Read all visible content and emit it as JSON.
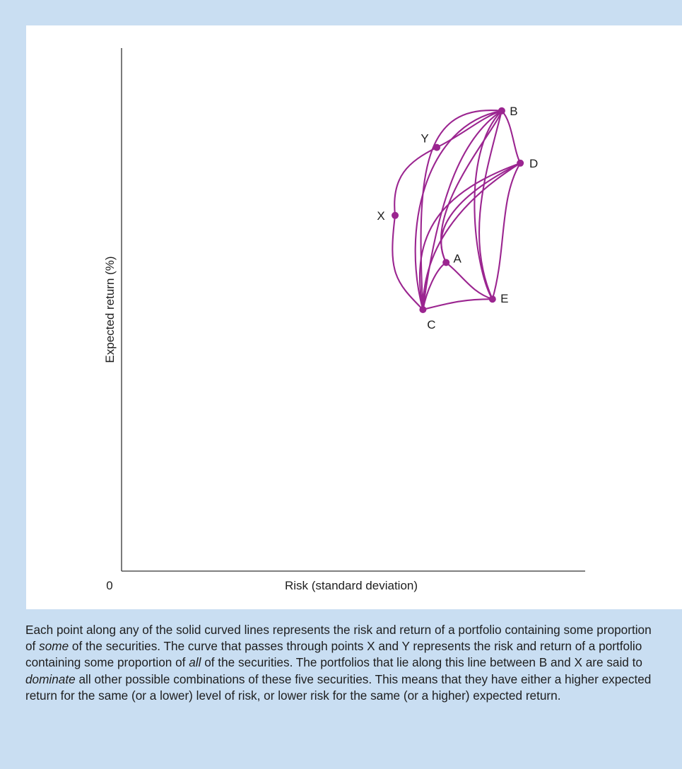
{
  "chart_data": {
    "type": "line",
    "title": "",
    "xlabel": "Risk (standard deviation)",
    "ylabel": "Expected return (%)",
    "origin_label": "0",
    "axis_ticks": false,
    "grid": false,
    "legend": "none",
    "colors": {
      "curve": "#9b2590",
      "point": "#9b2590",
      "axis": "#333333",
      "panel": "#c9def2",
      "plot_background": "#ffffff"
    },
    "points": [
      {
        "name": "B",
        "x": 0.82,
        "y": 0.88
      },
      {
        "name": "Y",
        "x": 0.68,
        "y": 0.81
      },
      {
        "name": "D",
        "x": 0.86,
        "y": 0.78
      },
      {
        "name": "X",
        "x": 0.59,
        "y": 0.68
      },
      {
        "name": "A",
        "x": 0.7,
        "y": 0.59
      },
      {
        "name": "E",
        "x": 0.8,
        "y": 0.52
      },
      {
        "name": "C",
        "x": 0.65,
        "y": 0.5
      }
    ],
    "curves": [
      {
        "from": "X",
        "to": "B",
        "through": "Y"
      },
      {
        "from": "C",
        "to": "X"
      },
      {
        "from": "C",
        "to": "B"
      },
      {
        "from": "C",
        "to": "B"
      },
      {
        "from": "C",
        "to": "B"
      },
      {
        "from": "C",
        "to": "D"
      },
      {
        "from": "C",
        "to": "D"
      },
      {
        "from": "C",
        "to": "A"
      },
      {
        "from": "C",
        "to": "E"
      },
      {
        "from": "A",
        "to": "B"
      },
      {
        "from": "A",
        "to": "D"
      },
      {
        "from": "A",
        "to": "E"
      },
      {
        "from": "E",
        "to": "B"
      },
      {
        "from": "E",
        "to": "B"
      },
      {
        "from": "E",
        "to": "D"
      },
      {
        "from": "B",
        "to": "D"
      }
    ]
  },
  "caption": {
    "part1": "Each point along any of the solid curved lines represents the risk and return of a portfolio containing some proportion of ",
    "em1": "some",
    "part2": " of the securities. The curve that passes through points X and Y represents the risk and return of a portfolio containing some proportion of ",
    "em2": "all",
    "part3": " of the securities. The portfolios that lie along this line between B and X are said to ",
    "em3": "dominate",
    "part4": " all other possible combinations of these five securities. This means that they have either a higher expected return for the same (or a lower) level of risk, or lower risk for the same (or a higher) expected return."
  }
}
